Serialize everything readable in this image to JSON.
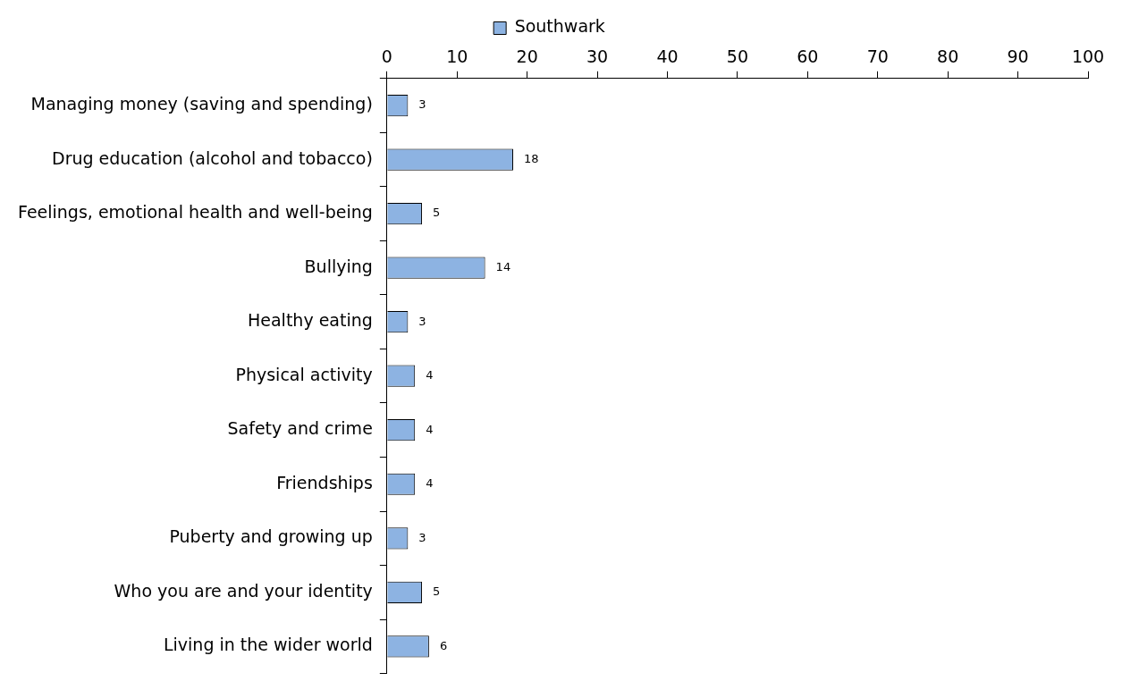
{
  "chart_data": {
    "type": "bar",
    "orientation": "horizontal",
    "categories": [
      "Managing money (saving and spending)",
      "Drug education (alcohol and tobacco)",
      "Feelings, emotional health and well-being",
      "Bullying",
      "Healthy eating",
      "Physical activity",
      "Safety and crime",
      "Friendships",
      "Puberty and growing up",
      "Who you are and your identity",
      "Living in the wider world"
    ],
    "series": [
      {
        "name": "Southwark",
        "color": "#8db3e2",
        "values": [
          3,
          18,
          5,
          14,
          3,
          4,
          4,
          4,
          3,
          5,
          6
        ]
      }
    ],
    "xlim": [
      0,
      100
    ],
    "xticks": [
      0,
      10,
      20,
      30,
      40,
      50,
      60,
      70,
      80,
      90,
      100
    ],
    "grid": false,
    "legend": "top",
    "data_labels": true
  }
}
